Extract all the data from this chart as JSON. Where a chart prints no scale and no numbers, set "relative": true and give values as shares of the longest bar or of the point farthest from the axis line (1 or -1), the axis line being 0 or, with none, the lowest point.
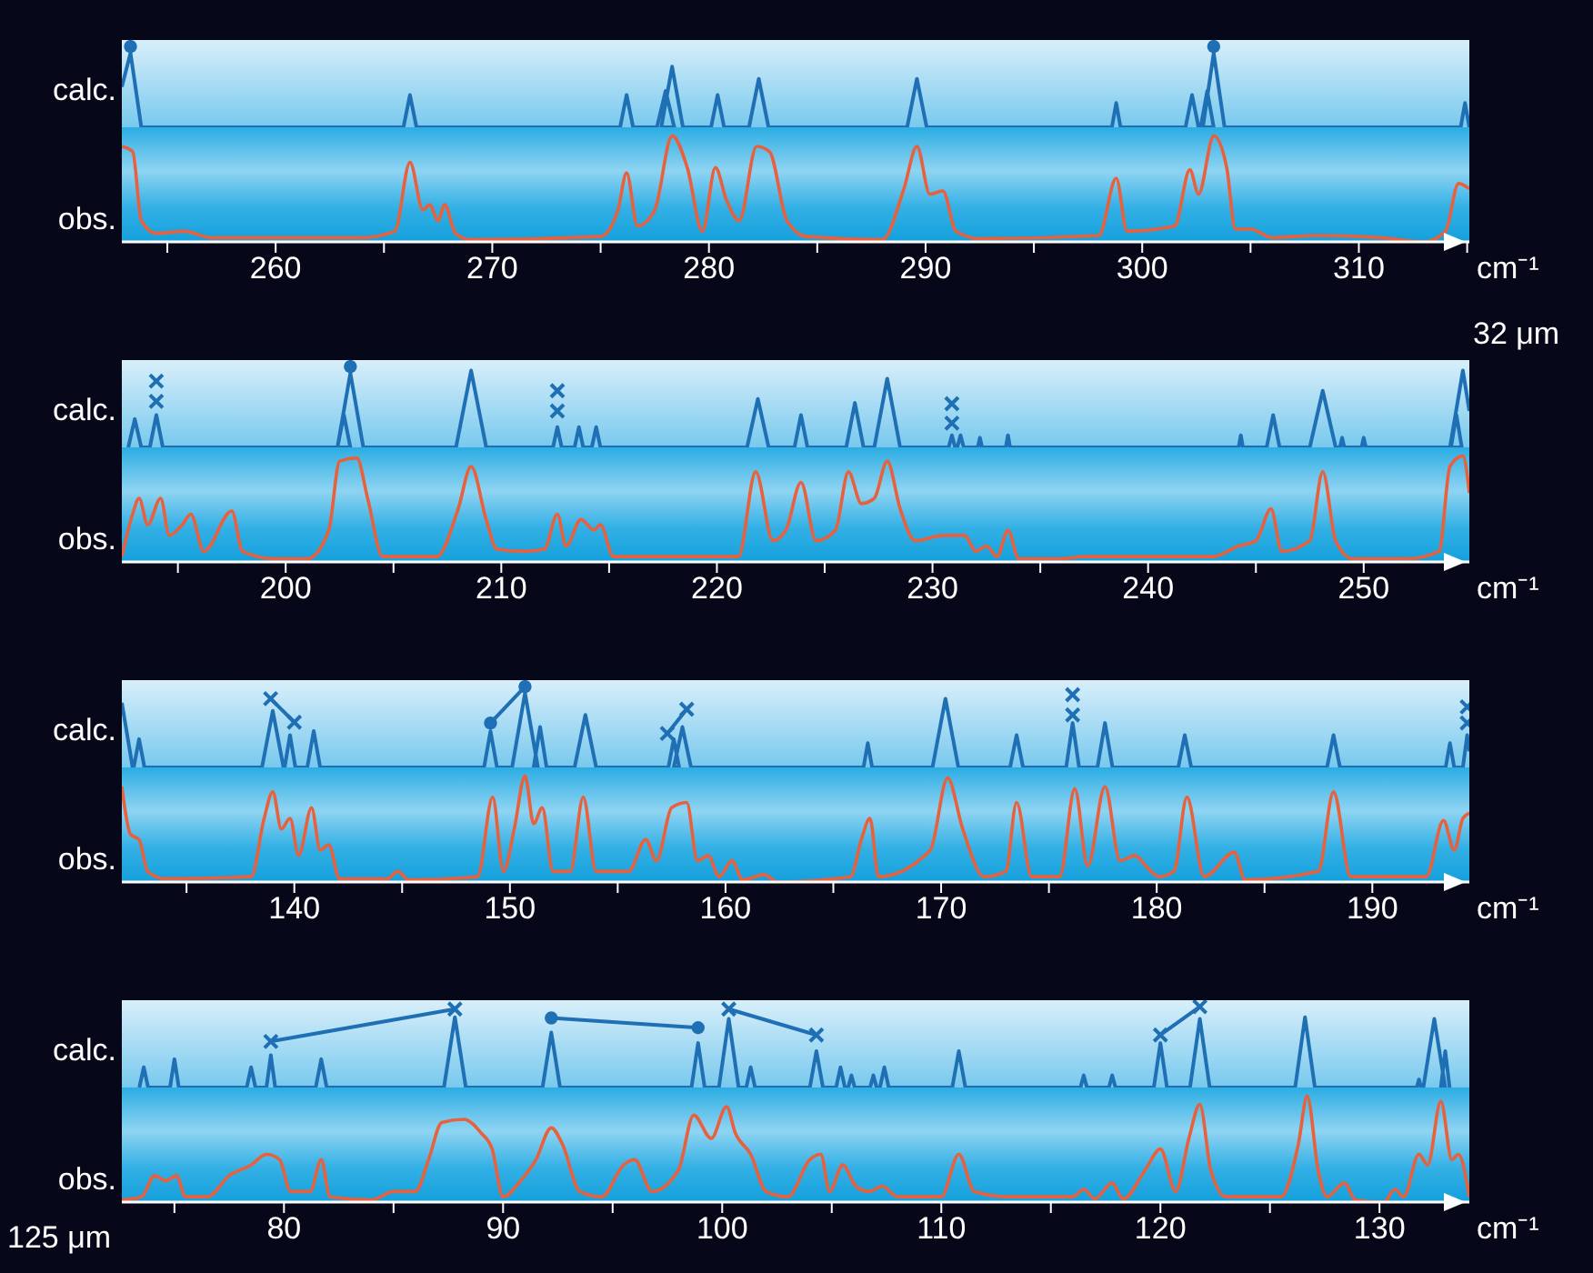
{
  "chart_data": [
    {
      "type": "line",
      "ylabel": "calc.",
      "relative": true,
      "xlim": [
        252.9,
        315.1
      ],
      "series": [
        {
          "type": "line",
          "color": "#1f6fb5",
          "marker": "none",
          "x": [
            252.9,
            253.3,
            253.8,
            265.9,
            266.2,
            266.5,
            275.9,
            276.2,
            276.5,
            277.6,
            278.0,
            278.4,
            277.8,
            278.3,
            278.8,
            280.1,
            280.4,
            280.7,
            281.85,
            282.3,
            282.75,
            289.15,
            289.6,
            290.05,
            298.6,
            298.8,
            299.0,
            302.0,
            302.3,
            302.6,
            302.7,
            303.0,
            303.3,
            302.8,
            303.3,
            303.8,
            314.7,
            314.9,
            315.1
          ],
          "values": [
            0.5,
            0.92,
            0,
            0,
            0.4,
            0,
            0,
            0.4,
            0,
            0,
            0.45,
            0,
            0,
            0.75,
            0,
            0,
            0.4,
            0,
            0,
            0.6,
            0,
            0,
            0.6,
            0,
            0,
            0.3,
            0,
            0,
            0.4,
            0,
            0,
            0.45,
            0,
            0,
            0.92,
            0,
            0,
            0.3,
            0
          ]
        },
        {
          "type": "scatter",
          "color": "#1f6fb5",
          "marker": "circle",
          "x": [
            253.3,
            303.3
          ],
          "values": [
            1.0,
            1.0
          ]
        }
      ]
    },
    {
      "type": "line",
      "ylabel": "obs.",
      "xlabel": "cm⁻¹",
      "relative": true,
      "legend": false,
      "grid": false,
      "xlim": [
        252.9,
        315.1
      ],
      "xticks": [
        {
          "value": 255,
          "label": null
        },
        260,
        {
          "value": 265,
          "label": null
        },
        270,
        {
          "value": 275,
          "label": null
        },
        280,
        {
          "value": 285,
          "label": null
        },
        290,
        {
          "value": 295,
          "label": null
        },
        300,
        {
          "value": 305,
          "label": null
        },
        310,
        {
          "value": 315,
          "label": null
        }
      ],
      "series": [
        {
          "type": "line",
          "color": "#e8603c",
          "marker": "none",
          "x": [
            252.9,
            253.4,
            253.8,
            254.5,
            255.8,
            257,
            264,
            265.5,
            266.2,
            266.8,
            267.1,
            267.5,
            267.8,
            268.3,
            269,
            275,
            275.8,
            276.2,
            276.7,
            277.5,
            278.3,
            279,
            279.7,
            280.3,
            280.8,
            281.4,
            282.2,
            282.8,
            283.6,
            284.5,
            288,
            289.0,
            289.6,
            290.2,
            290.8,
            291.4,
            292.5,
            298,
            298.8,
            299.3,
            301.5,
            302.2,
            302.6,
            303.3,
            303.9,
            304.3,
            305,
            306,
            308,
            311,
            313,
            314,
            314.6,
            315.1
          ],
          "values": [
            0.9,
            0.85,
            0.2,
            0.08,
            0.1,
            0.04,
            0.04,
            0.1,
            0.75,
            0.3,
            0.35,
            0.2,
            0.35,
            0.08,
            0.02,
            0.05,
            0.3,
            0.65,
            0.15,
            0.3,
            1.0,
            0.7,
            0.1,
            0.7,
            0.4,
            0.2,
            0.9,
            0.85,
            0.2,
            0.05,
            0.02,
            0.5,
            0.9,
            0.45,
            0.48,
            0.1,
            0.03,
            0.06,
            0.6,
            0.1,
            0.15,
            0.68,
            0.45,
            1.0,
            0.7,
            0.12,
            0.12,
            0.04,
            0.06,
            0.04,
            0.0,
            0.1,
            0.55,
            0.5
          ]
        }
      ]
    },
    {
      "type": "line",
      "ylabel": "calc.",
      "relative": true,
      "xlim": [
        192.4,
        254.9
      ],
      "annotations": [
        "32 μm"
      ],
      "series": [
        {
          "type": "line",
          "color": "#1f6fb5",
          "marker": "none",
          "x": [
            192.7,
            193.0,
            193.3,
            193.7,
            194.0,
            194.3,
            202.4,
            202.7,
            203.0,
            202.4,
            203.0,
            203.6,
            207.9,
            208.6,
            209.3,
            212.4,
            212.6,
            212.8,
            213.4,
            213.6,
            213.8,
            214.2,
            214.4,
            214.6,
            221.4,
            221.9,
            222.4,
            223.6,
            223.9,
            224.2,
            226.0,
            226.4,
            226.8,
            227.3,
            227.9,
            228.5,
            230.75,
            230.9,
            231.05,
            231.15,
            231.3,
            231.45,
            232.1,
            232.2,
            232.3,
            233.4,
            233.5,
            233.6,
            244.2,
            244.3,
            244.4,
            245.5,
            245.8,
            246.1,
            247.5,
            248.1,
            248.7,
            248.9,
            249.0,
            249.1,
            249.9,
            250.0,
            250.1,
            254.05,
            254.3,
            254.55,
            254.0,
            254.6,
            254.9
          ],
          "values": [
            0,
            0.35,
            0,
            0,
            0.4,
            0,
            0,
            0.4,
            0,
            0,
            0.92,
            0,
            0,
            0.95,
            0,
            0,
            0.25,
            0,
            0,
            0.25,
            0,
            0,
            0.25,
            0,
            0,
            0.6,
            0,
            0,
            0.4,
            0,
            0,
            0.55,
            0,
            0,
            0.85,
            0,
            0,
            0.15,
            0,
            0,
            0.15,
            0,
            0,
            0.12,
            0,
            0,
            0.15,
            0,
            0,
            0.15,
            0,
            0,
            0.4,
            0,
            0,
            0.7,
            0,
            0,
            0.12,
            0,
            0,
            0.12,
            0,
            0,
            0.4,
            0,
            0,
            0.95,
            0.45
          ]
        },
        {
          "type": "scatter",
          "color": "#1f6fb5",
          "marker": "cross",
          "x": [
            194.0,
            194.0,
            212.6,
            212.6,
            230.9,
            230.9
          ],
          "values": [
            0.57,
            0.82,
            0.45,
            0.7,
            0.3,
            0.54
          ]
        },
        {
          "type": "scatter",
          "color": "#1f6fb5",
          "marker": "circle",
          "x": [
            203.0
          ],
          "values": [
            1.0
          ]
        }
      ]
    },
    {
      "type": "line",
      "ylabel": "obs.",
      "xlabel": "cm⁻¹",
      "relative": true,
      "legend": false,
      "grid": false,
      "xlim": [
        192.4,
        254.9
      ],
      "xticks": [
        {
          "value": 195,
          "label": null
        },
        200,
        {
          "value": 205,
          "label": null
        },
        210,
        {
          "value": 215,
          "label": null
        },
        220,
        {
          "value": 225,
          "label": null
        },
        230,
        {
          "value": 235,
          "label": null
        },
        240,
        {
          "value": 245,
          "label": null
        },
        250
      ],
      "series": [
        {
          "type": "line",
          "color": "#e8603c",
          "marker": "none",
          "x": [
            192.4,
            192.9,
            193.2,
            193.6,
            194.2,
            194.6,
            195.2,
            195.6,
            196.2,
            197.5,
            198,
            199.5,
            201,
            202,
            202.5,
            203.3,
            203.8,
            204.5,
            207,
            208,
            208.6,
            209.3,
            209.8,
            211,
            212,
            212.6,
            213,
            213.7,
            214.3,
            214.6,
            215.2,
            221,
            221.8,
            222.6,
            223.2,
            223.9,
            224.6,
            225.5,
            226.1,
            226.7,
            227.3,
            227.9,
            228.5,
            229.2,
            230.5,
            231.5,
            232,
            232.5,
            233,
            233.5,
            234,
            236,
            237,
            243,
            244.2,
            245,
            245.7,
            246.2,
            247.5,
            248.1,
            248.7,
            249.5,
            252,
            253.5,
            254.0,
            254.6,
            254.9
          ],
          "values": [
            0.05,
            0.45,
            0.6,
            0.35,
            0.6,
            0.25,
            0.35,
            0.45,
            0.1,
            0.48,
            0.1,
            0.03,
            0.03,
            0.3,
            0.95,
            0.98,
            0.6,
            0.05,
            0.05,
            0.5,
            0.9,
            0.4,
            0.12,
            0.1,
            0.12,
            0.45,
            0.15,
            0.4,
            0.3,
            0.35,
            0.05,
            0.05,
            0.85,
            0.2,
            0.3,
            0.75,
            0.2,
            0.3,
            0.85,
            0.55,
            0.6,
            0.95,
            0.5,
            0.2,
            0.25,
            0.25,
            0.1,
            0.15,
            0.05,
            0.3,
            0.03,
            0.03,
            0.05,
            0.05,
            0.15,
            0.2,
            0.5,
            0.1,
            0.2,
            0.85,
            0.2,
            0.03,
            0.03,
            0.1,
            0.9,
            1.0,
            0.65
          ]
        }
      ]
    },
    {
      "type": "line",
      "ylabel": "calc.",
      "relative": true,
      "xlim": [
        132.0,
        194.5
      ],
      "series": [
        {
          "type": "line",
          "color": "#1f6fb5",
          "marker": "none",
          "x": [
            132.0,
            132.5,
            132.55,
            132.8,
            133.05,
            138.5,
            139.0,
            139.5,
            139.55,
            139.8,
            140.05,
            140.6,
            140.9,
            141.2,
            148.8,
            149.1,
            149.4,
            150.1,
            150.7,
            151.3,
            151.1,
            151.4,
            151.7,
            153.0,
            153.5,
            154.0,
            157.35,
            157.6,
            157.85,
            157.6,
            158.0,
            158.4,
            166.4,
            166.6,
            166.8,
            169.6,
            170.2,
            170.8,
            173.2,
            173.5,
            173.8,
            175.8,
            176.1,
            176.4,
            177.25,
            177.6,
            177.95,
            181.0,
            181.3,
            181.6,
            187.9,
            188.2,
            188.5,
            193.4,
            193.6,
            193.8,
            194.2,
            194.4,
            194.5
          ],
          "values": [
            0.8,
            0,
            0,
            0.35,
            0,
            0,
            0.7,
            0,
            0,
            0.4,
            0,
            0,
            0.45,
            0,
            0,
            0.45,
            0,
            0,
            0.92,
            0,
            0,
            0.5,
            0,
            0,
            0.65,
            0,
            0,
            0.35,
            0,
            0,
            0.5,
            0,
            0,
            0.3,
            0,
            0,
            0.85,
            0,
            0,
            0.4,
            0,
            0,
            0.55,
            0,
            0,
            0.55,
            0,
            0,
            0.4,
            0,
            0,
            0.4,
            0,
            0,
            0.3,
            0,
            0,
            0.4,
            0.2
          ]
        },
        {
          "type": "line",
          "color": "#1f6fb5",
          "marker": "cross",
          "x": [
            138.9,
            140.0
          ],
          "values": [
            0.85,
            0.56
          ]
        },
        {
          "type": "line",
          "color": "#1f6fb5",
          "marker": "circle",
          "x": [
            149.1,
            150.7
          ],
          "values": [
            0.55,
            1.0
          ]
        },
        {
          "type": "line",
          "color": "#1f6fb5",
          "marker": "cross",
          "x": [
            157.3,
            158.2
          ],
          "values": [
            0.42,
            0.72
          ]
        },
        {
          "type": "scatter",
          "color": "#1f6fb5",
          "marker": "cross",
          "x": [
            176.1,
            176.1,
            194.4,
            194.4
          ],
          "values": [
            0.65,
            0.9,
            0.55,
            0.75
          ]
        }
      ]
    },
    {
      "type": "line",
      "ylabel": "obs.",
      "xlabel": "cm⁻¹",
      "relative": true,
      "legend": false,
      "grid": false,
      "xlim": [
        132.0,
        194.5
      ],
      "xticks": [
        {
          "value": 135,
          "label": null
        },
        140,
        {
          "value": 145,
          "label": null
        },
        150,
        {
          "value": 155,
          "label": null
        },
        160,
        {
          "value": 165,
          "label": null
        },
        170,
        {
          "value": 175,
          "label": null
        },
        180,
        {
          "value": 185,
          "label": null
        },
        190
      ],
      "series": [
        {
          "type": "line",
          "color": "#e8603c",
          "marker": "none",
          "x": [
            132.0,
            132.4,
            132.8,
            133.2,
            134,
            138,
            138.6,
            139.0,
            139.4,
            139.8,
            140.2,
            140.8,
            141.2,
            141.6,
            142.1,
            144.3,
            144.8,
            145.3,
            148.5,
            149.2,
            149.7,
            150.2,
            150.7,
            151.1,
            151.5,
            152,
            152.8,
            153.4,
            154,
            155.5,
            156.3,
            156.8,
            157.5,
            158.2,
            158.7,
            159.2,
            159.7,
            160.3,
            160.8,
            161.8,
            162.4,
            165.8,
            166.3,
            166.7,
            167.1,
            169.5,
            170.3,
            171,
            172,
            173,
            173.5,
            174.2,
            175.5,
            176.2,
            176.8,
            177.6,
            178.3,
            179,
            179.5,
            180.1,
            180.8,
            181.4,
            182.2,
            183.6,
            184.1,
            187.5,
            188.2,
            189,
            192.5,
            193.3,
            193.8,
            194.2,
            194.5
          ],
          "values": [
            0.9,
            0.45,
            0.4,
            0.1,
            0.03,
            0.05,
            0.6,
            0.85,
            0.5,
            0.6,
            0.25,
            0.7,
            0.3,
            0.35,
            0.03,
            0.03,
            0.1,
            0.02,
            0.05,
            0.8,
            0.1,
            0.5,
            1.0,
            0.55,
            0.7,
            0.1,
            0.1,
            0.8,
            0.1,
            0.1,
            0.4,
            0.2,
            0.7,
            0.75,
            0.2,
            0.25,
            0.05,
            0.2,
            0.02,
            0.07,
            0.0,
            0.05,
            0.4,
            0.6,
            0.05,
            0.3,
            0.98,
            0.5,
            0.05,
            0.1,
            0.75,
            0.05,
            0.05,
            0.88,
            0.15,
            0.9,
            0.2,
            0.25,
            0.15,
            0.05,
            0.1,
            0.8,
            0.05,
            0.28,
            0.02,
            0.1,
            0.85,
            0.05,
            0.05,
            0.58,
            0.3,
            0.6,
            0.65
          ]
        }
      ]
    },
    {
      "type": "line",
      "ylabel": "calc.",
      "relative": true,
      "xlim": [
        72.6,
        134.1
      ],
      "series": [
        {
          "type": "line",
          "color": "#1f6fb5",
          "marker": "none",
          "x": [
            73.4,
            73.6,
            73.8,
            74.8,
            75.0,
            75.2,
            78.3,
            78.5,
            78.7,
            79.2,
            79.4,
            79.6,
            81.45,
            81.7,
            81.95,
            87.3,
            87.8,
            88.3,
            91.8,
            92.2,
            92.6,
            98.6,
            98.9,
            99.2,
            99.85,
            100.3,
            100.75,
            101.1,
            101.3,
            101.5,
            104.0,
            104.3,
            104.6,
            105.2,
            105.4,
            105.6,
            105.75,
            105.9,
            106.05,
            106.75,
            106.9,
            107.05,
            107.2,
            107.4,
            107.6,
            110.5,
            110.8,
            111.1,
            116.35,
            116.5,
            116.65,
            117.65,
            117.8,
            117.95,
            119.7,
            120.0,
            120.3,
            121.35,
            121.8,
            122.25,
            126.15,
            126.6,
            127.05,
            131.7,
            131.8,
            131.9,
            132.0,
            132.5,
            133.0,
            132.8,
            133.0,
            133.2
          ],
          "values": [
            0,
            0.25,
            0,
            0,
            0.35,
            0,
            0,
            0.25,
            0,
            0,
            0.4,
            0,
            0,
            0.35,
            0,
            0,
            0.87,
            0,
            0,
            0.68,
            0,
            0,
            0.55,
            0,
            0,
            0.85,
            0,
            0,
            0.25,
            0,
            0,
            0.45,
            0,
            0,
            0.25,
            0,
            0,
            0.15,
            0,
            0,
            0.15,
            0,
            0,
            0.25,
            0,
            0,
            0.45,
            0,
            0,
            0.15,
            0,
            0,
            0.15,
            0,
            0,
            0.55,
            0,
            0,
            0.85,
            0,
            0,
            0.87,
            0,
            0,
            0.1,
            0,
            0,
            0.85,
            0,
            0,
            0.45,
            0
          ]
        },
        {
          "type": "line",
          "color": "#1f6fb5",
          "marker": "cross",
          "x": [
            79.4,
            87.8
          ],
          "values": [
            0.57,
            0.97
          ]
        },
        {
          "type": "line",
          "color": "#1f6fb5",
          "marker": "circle",
          "x": [
            92.2,
            98.9
          ],
          "values": [
            0.86,
            0.74
          ]
        },
        {
          "type": "line",
          "color": "#1f6fb5",
          "marker": "cross",
          "x": [
            100.3,
            104.3
          ],
          "values": [
            0.97,
            0.65
          ]
        },
        {
          "type": "line",
          "color": "#1f6fb5",
          "marker": "cross",
          "x": [
            120.0,
            121.8
          ],
          "values": [
            0.65,
            1.0
          ]
        }
      ]
    },
    {
      "type": "line",
      "ylabel": "obs.",
      "xlabel": "cm⁻¹",
      "relative": true,
      "legend": false,
      "grid": false,
      "xlim": [
        72.6,
        134.1
      ],
      "annotations": [
        "125 μm"
      ],
      "xticks": [
        {
          "value": 75,
          "label": null
        },
        80,
        {
          "value": 85,
          "label": null
        },
        90,
        {
          "value": 95,
          "label": null
        },
        100,
        {
          "value": 105,
          "label": null
        },
        110,
        {
          "value": 115,
          "label": null
        },
        120,
        {
          "value": 125,
          "label": null
        },
        130
      ],
      "series": [
        {
          "type": "line",
          "color": "#e8603c",
          "marker": "none",
          "x": [
            72.6,
            73.5,
            74.1,
            74.6,
            75.1,
            75.5,
            76.5,
            77.5,
            78.5,
            79.2,
            79.8,
            80.3,
            81.2,
            81.7,
            82.1,
            84,
            85,
            86,
            86.6,
            87.2,
            88.2,
            89,
            89.5,
            90,
            90.8,
            91.5,
            92.2,
            92.7,
            93.5,
            94.5,
            95.5,
            96,
            96.8,
            98,
            98.7,
            99.5,
            100.2,
            100.6,
            101.3,
            102,
            103,
            104,
            104.5,
            104.9,
            105.5,
            106.1,
            106.7,
            107.3,
            108,
            110,
            110.8,
            111.5,
            113,
            116,
            116.5,
            117,
            117.8,
            118.3,
            119.3,
            120,
            120.7,
            121.3,
            121.8,
            122.3,
            123,
            125.5,
            126.3,
            126.7,
            127.2,
            127.6,
            128.4,
            128.9,
            130.2,
            130.7,
            131.1,
            131.8,
            132.2,
            132.8,
            133.3,
            133.6,
            134.1
          ],
          "values": [
            0.02,
            0.05,
            0.25,
            0.2,
            0.25,
            0.05,
            0.05,
            0.25,
            0.35,
            0.45,
            0.4,
            0.1,
            0.1,
            0.4,
            0.05,
            0.02,
            0.1,
            0.1,
            0.4,
            0.75,
            0.78,
            0.65,
            0.5,
            0.05,
            0.2,
            0.4,
            0.7,
            0.55,
            0.1,
            0.05,
            0.35,
            0.4,
            0.1,
            0.3,
            0.82,
            0.6,
            0.9,
            0.65,
            0.45,
            0.1,
            0.05,
            0.4,
            0.45,
            0.1,
            0.35,
            0.15,
            0.1,
            0.15,
            0.05,
            0.05,
            0.45,
            0.1,
            0.05,
            0.05,
            0.12,
            0.03,
            0.18,
            0.03,
            0.3,
            0.5,
            0.1,
            0.6,
            0.92,
            0.3,
            0.05,
            0.05,
            0.55,
            1.0,
            0.3,
            0.05,
            0.18,
            0.02,
            0.0,
            0.12,
            0.05,
            0.45,
            0.35,
            0.95,
            0.4,
            0.45,
            0.05
          ]
        }
      ]
    }
  ]
}
